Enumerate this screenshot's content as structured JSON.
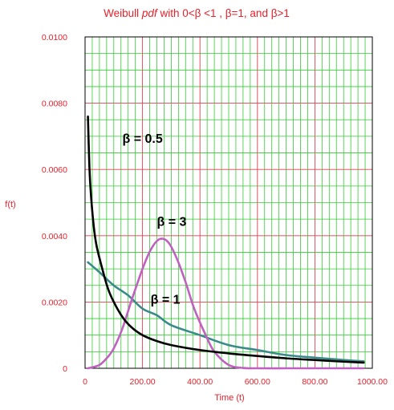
{
  "chart_data": {
    "type": "line",
    "title": {
      "prefix": "Weibull ",
      "emphasis": "pdf",
      "suffix": " with 0<β <1 , β=1,  and  β>1"
    },
    "xlabel": "Time (t)",
    "ylabel": "f(t)",
    "xlim": [
      0,
      1000
    ],
    "ylim": [
      0,
      0.01
    ],
    "x_ticks": [
      "0",
      "200.00",
      "400.00",
      "600.00",
      "800.00",
      "1000.00"
    ],
    "y_ticks": [
      "0",
      "0.0020",
      "0.0040",
      "0.0060",
      "0.0080",
      "0.0100"
    ],
    "grid": true,
    "colors": {
      "text_axis": "#e8202a",
      "minor_grid": "#33cc33",
      "major_grid": "#e04050",
      "frame": "#000000"
    },
    "series": [
      {
        "name": "β = 0.5",
        "color": "#000000",
        "x": [
          10,
          15,
          20,
          30,
          40,
          60,
          80,
          100,
          130,
          160,
          200,
          250,
          300,
          400,
          500,
          600,
          700,
          800,
          900,
          970
        ],
        "y": [
          0.0076,
          0.0061,
          0.0053,
          0.0043,
          0.0037,
          0.003,
          0.0024,
          0.002,
          0.00155,
          0.00125,
          0.001,
          0.00082,
          0.0007,
          0.00055,
          0.00045,
          0.00037,
          0.0003,
          0.00025,
          0.0002,
          0.00017
        ]
      },
      {
        "name": "β = 1",
        "color": "#3a8a8a",
        "x": [
          10,
          50,
          100,
          150,
          200,
          250,
          300,
          400,
          500,
          600,
          700,
          800,
          900,
          970
        ],
        "y": [
          0.0032,
          0.0029,
          0.0025,
          0.0022,
          0.0018,
          0.0016,
          0.0013,
          0.001,
          0.0007,
          0.00055,
          0.0004,
          0.00032,
          0.00025,
          0.00021
        ]
      },
      {
        "name": "β = 3",
        "color": "#c060c0",
        "x": [
          10,
          50,
          80,
          100,
          130,
          160,
          200,
          230,
          260,
          290,
          320,
          350,
          380,
          420,
          450,
          500,
          550,
          600,
          700,
          800,
          970
        ],
        "y": [
          0,
          0.0001,
          0.00035,
          0.0006,
          0.0012,
          0.002,
          0.003,
          0.0036,
          0.0039,
          0.0038,
          0.0033,
          0.0026,
          0.0018,
          0.001,
          0.0005,
          0.0001,
          1e-05,
          0,
          0,
          0,
          0
        ]
      }
    ],
    "annotations": [
      {
        "text": "β = 0.5",
        "x": 130,
        "y": 0.0068
      },
      {
        "text": "β = 3",
        "x": 250,
        "y": 0.0043
      },
      {
        "text": "β = 1",
        "x": 228,
        "y": 0.00195
      }
    ]
  }
}
